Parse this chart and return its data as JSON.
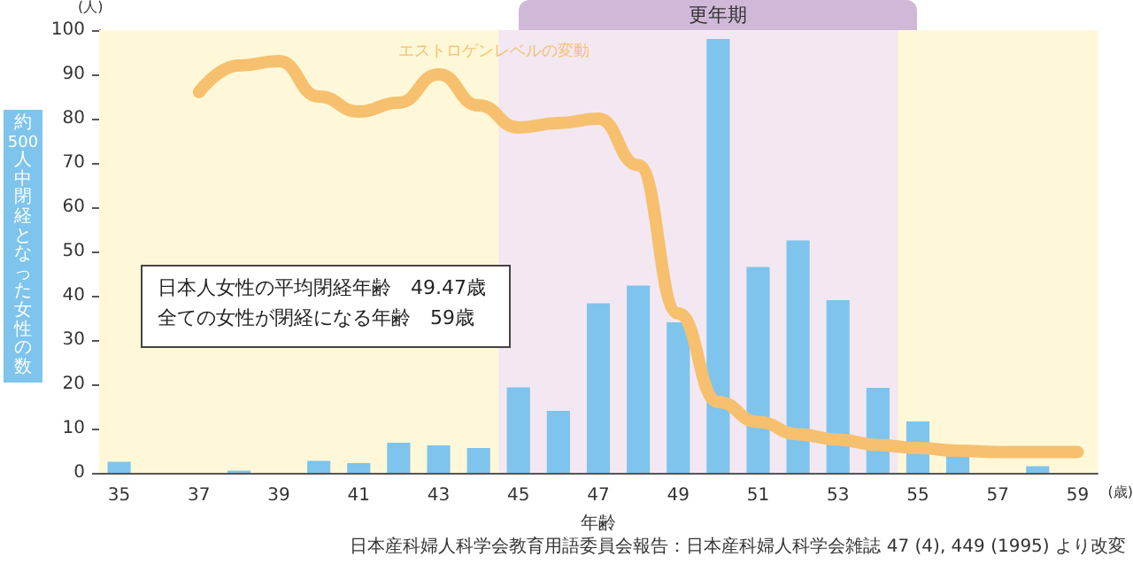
{
  "chart_data": {
    "type": "bar",
    "categories": [
      "35",
      null,
      "37",
      null,
      "39",
      null,
      "41",
      null,
      "43",
      null,
      "45",
      null,
      "47",
      null,
      "49",
      null,
      "51",
      null,
      "53",
      null,
      "55",
      null,
      "57",
      null,
      "59"
    ],
    "series": [
      {
        "type": "bar",
        "color": "#7ec4ec",
        "values": [
          2.5,
          0,
          0,
          0.5,
          0,
          2.7,
          2.2,
          6.8,
          6.2,
          5.6,
          19.3,
          14,
          38.3,
          42.3,
          34,
          98,
          46.5,
          52.5,
          39,
          19.2,
          11.6,
          3.8,
          0,
          1.5,
          0
        ]
      },
      {
        "type": "line",
        "name": "エストロゲンレベルの変動",
        "color": "#f6c06e",
        "values": [
          null,
          null,
          86,
          92,
          93,
          85,
          81.6,
          83.6,
          90,
          83,
          78,
          79,
          80,
          69.5,
          36,
          16,
          11.5,
          8.7,
          7.5,
          6.3,
          5.6,
          5,
          4.7,
          4.7,
          4.7
        ]
      }
    ],
    "xlabel": "年齢",
    "ylabel": "約500人中閉経となった女性の数",
    "ylim": [
      0,
      100
    ],
    "yticks": [
      0,
      10,
      20,
      30,
      40,
      50,
      60,
      70,
      80,
      90,
      100
    ],
    "bands": [
      {
        "axis": "x",
        "from": "35",
        "to": "45",
        "color": "#fff8d8"
      },
      {
        "axis": "x",
        "from": "45",
        "to": "55",
        "label": "更年期",
        "color": "#f3e8f2"
      },
      {
        "axis": "x",
        "from": "55",
        "to": "59",
        "color": "#fff8d8"
      }
    ],
    "annotations": [
      "日本人女性の平均閉経年齢　49.47歳",
      "全ての女性が閉経になる年齢　59歳",
      "(人)",
      "(歳)",
      "日本産科婦人科学会教育用語委員会報告：日本産科婦人科学会雑誌 47 (4), 449 (1995) より改変"
    ],
    "grid": false,
    "legend": false,
    "marker": "none",
    "line_style": "solid"
  }
}
